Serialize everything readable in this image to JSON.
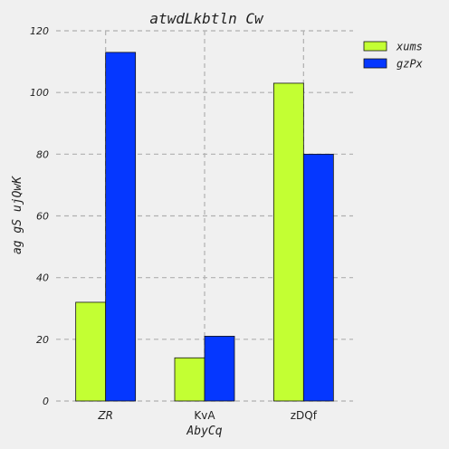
{
  "chart_data": {
    "type": "bar",
    "title": "atwdLkbtln Cw",
    "xlabel": "AbyCq",
    "ylabel": "ag gS ujQwK",
    "categories": [
      "ZR",
      "KvA",
      "zDQf"
    ],
    "category_italic": [
      true,
      false,
      false
    ],
    "series": [
      {
        "name": "xums",
        "values": [
          32,
          14,
          103
        ],
        "color": "#c3ff33"
      },
      {
        "name": "gzPx",
        "values": [
          113,
          21,
          80
        ],
        "color": "#0537ff"
      }
    ],
    "ylim": [
      0,
      120
    ],
    "yticks": [
      0,
      20,
      40,
      60,
      80,
      100,
      120
    ],
    "grid": true,
    "legend_position": "top-right"
  }
}
